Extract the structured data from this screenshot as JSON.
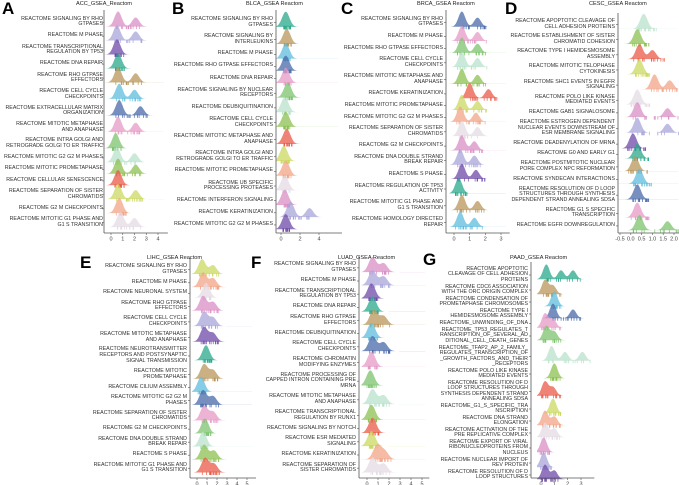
{
  "palette": [
    "#d98fc4",
    "#a9a6db",
    "#6f4aa8",
    "#2aa88a",
    "#b8955a",
    "#5fbcdc",
    "#4a6aa8",
    "#e59ac6",
    "#7cc36e",
    "#b9e2cc",
    "#8cc050",
    "#ea5a48",
    "#cbd860",
    "#f2a487",
    "#e4dbe4"
  ],
  "chart_data": [
    {
      "type": "ridgeline",
      "label": "A",
      "title": "ACC_GSEA_Reactom",
      "xlim": [
        -0.5,
        4.5
      ],
      "ticks": [
        "0",
        "1",
        "2",
        "3",
        "4"
      ],
      "tick_values": [
        0,
        1,
        2,
        3,
        4
      ],
      "rows": [
        {
          "name": "REACTOME SIGNALING BY RHO GTPASES",
          "modes": [
            0.6,
            2.1
          ]
        },
        {
          "name": "REACTOME M PHASE",
          "modes": [
            0.5,
            2.1
          ]
        },
        {
          "name": "REACTOME TRANSCRIPTIONAL REGULATION BY TP53",
          "modes": [
            0.5
          ]
        },
        {
          "name": "REACTOME DNA REPAIR",
          "modes": [
            0.6
          ]
        },
        {
          "name": "REACTOME RHO GTPASE EFFECTORS",
          "modes": [
            0.6,
            2.1
          ]
        },
        {
          "name": "REACTOME CELL CYCLE CHECKPOINTS",
          "modes": [
            0.7,
            2.0
          ]
        },
        {
          "name": "REACTOME EXTRACELLULAR MATRIX ORGANIZATION",
          "modes": [
            0.7,
            2.5
          ]
        },
        {
          "name": "REACTOME MITOTIC METAPHASE AND ANAPHASE",
          "modes": [
            0.6,
            2.1
          ]
        },
        {
          "name": "REACTOME INTRA GOLGI AND RETROGRADE GOLGI TO ER TRAFFIC",
          "modes": [
            0.4
          ]
        },
        {
          "name": "REACTOME MITOTIC G2 G2 M PHASES",
          "modes": [
            0.5,
            2.0
          ]
        },
        {
          "name": "REACTOME MITOTIC PROMETAPHASE",
          "modes": [
            0.6,
            2.1
          ]
        },
        {
          "name": "REACTOME CELLULAR SENESCENCE",
          "modes": [
            0.6
          ]
        },
        {
          "name": "REACTOME SEPARATION OF SISTER CHROMATIDS",
          "modes": [
            0.6,
            2.1
          ]
        },
        {
          "name": "REACTOME G2 M CHECKPOINTS",
          "modes": [
            0.7
          ]
        },
        {
          "name": "REACTOME MITOTIC G1 PHASE AND G1 S TRANSITION",
          "modes": [
            0.8,
            2.0
          ]
        }
      ]
    },
    {
      "type": "ridgeline",
      "label": "B",
      "title": "BLCA_GSEA Reactom",
      "xlim": [
        -0.5,
        6
      ],
      "ticks": [
        "0",
        "2",
        "4"
      ],
      "tick_values": [
        0,
        2,
        4
      ],
      "rows": [
        {
          "name": "REACTOME SIGNALING BY RHO GTPASES",
          "modes": [
            0.5
          ]
        },
        {
          "name": "REACTOME SIGNALING BY INTERLEUKINS",
          "modes": [
            0.6
          ]
        },
        {
          "name": "REACTOME M PHASE",
          "modes": [
            0.5
          ]
        },
        {
          "name": "REACTOME RHO GTPASE EFFECTORS",
          "modes": [
            0.5
          ]
        },
        {
          "name": "REACTOME DNA REPAIR",
          "modes": [
            0.5
          ]
        },
        {
          "name": "REACTOME SIGNALING BY NUCLEAR RECEPTORS",
          "modes": [
            0.7
          ]
        },
        {
          "name": "REACTOME DEUBIQUITINATION",
          "modes": [
            0.4
          ]
        },
        {
          "name": "REACTOME CELL CYCLE CHECKPOINTS",
          "modes": [
            0.5
          ]
        },
        {
          "name": "REACTOME MITOTIC METAPHASE AND ANAPHASE",
          "modes": [
            0.6
          ]
        },
        {
          "name": "REACTOME INTRA GOLGI AND RETROGRADE GOLGI TO ER TRAFFIC",
          "modes": [
            0.3
          ]
        },
        {
          "name": "REACTOME MITOTIC PROMETAPHASE",
          "modes": [
            0.5
          ]
        },
        {
          "name": "REACTOME UB SPECIFIC PROCESSING PROTEASES",
          "modes": [
            0.4
          ]
        },
        {
          "name": "REACTOME INTERFERON SIGNALING",
          "modes": [
            0.4
          ]
        },
        {
          "name": "REACTOME KERATINIZATION",
          "modes": [
            1.0,
            3.0
          ]
        },
        {
          "name": "REACTOME MITOTIC G2 G2 M PHASES",
          "modes": [
            0.5
          ]
        }
      ]
    },
    {
      "type": "ridgeline",
      "label": "C",
      "title": "BRCA_GSEA Reactom",
      "xlim": [
        -0.3,
        3.3
      ],
      "ticks": [
        "0",
        "1",
        "2",
        "3"
      ],
      "tick_values": [
        0,
        1,
        2,
        3
      ],
      "rows": [
        {
          "name": "REACTOME SIGNALING BY RHO GTPASES",
          "modes": [
            0.5,
            1.5
          ]
        },
        {
          "name": "REACTOME M PHASE",
          "modes": [
            0.5,
            1.5
          ]
        },
        {
          "name": "REACTOME RHO GTPASE EFFECTORS",
          "modes": [
            0.5,
            1.5
          ]
        },
        {
          "name": "REACTOME CELL CYCLE CHECKPOINTS",
          "modes": [
            0.5,
            1.5
          ]
        },
        {
          "name": "REACTOME MITOTIC METAPHASE AND ANAPHASE",
          "modes": [
            0.5,
            1.5
          ]
        },
        {
          "name": "REACTOME KERATINIZATION",
          "modes": [
            1.0,
            2.2
          ]
        },
        {
          "name": "REACTOME MITOTIC PROMETAPHASE",
          "modes": [
            0.5,
            1.5
          ]
        },
        {
          "name": "REACTOME MITOTIC G2 G2 M PHASES",
          "modes": [
            0.4,
            1.4
          ]
        },
        {
          "name": "REACTOME SEPARATION OF SISTER CHROMATIDS",
          "modes": [
            0.5,
            1.5
          ]
        },
        {
          "name": "REACTOME G2 M CHECKPOINTS",
          "modes": [
            0.5,
            1.3
          ]
        },
        {
          "name": "REACTOME DNA DOUBLE STRAND BREAK REPAIR",
          "modes": [
            0.4,
            1.3
          ]
        },
        {
          "name": "REACTOME S PHASE",
          "modes": [
            0.5,
            1.4
          ]
        },
        {
          "name": "REACTOME REGULATION OF TP53 ACTIVITY",
          "modes": [
            0.3
          ]
        },
        {
          "name": "REACTOME MITOTIC G1 PHASE AND G1 S TRANSITION",
          "modes": [
            0.5,
            1.5
          ]
        },
        {
          "name": "REACTOME HOMOLOGY DIRECTED REPAIR",
          "modes": [
            0.4,
            1.3
          ]
        }
      ]
    },
    {
      "type": "ridgeline",
      "label": "D",
      "title": "CESC_GSEA Reactom",
      "xlim": [
        -0.6,
        2.2
      ],
      "ticks": [
        "-0.5",
        "0.0",
        "0.5",
        "1.0",
        "1.5",
        "2.0"
      ],
      "tick_values": [
        -0.5,
        0,
        0.5,
        1,
        1.5,
        2
      ],
      "rows": [
        {
          "name": "REACTOME APOPTOTIC CLEAVAGE OF CELL ADHESION PROTEINS",
          "modes": [
            0.6
          ]
        },
        {
          "name": "REACTOME ESTABLISHMENT OF SISTER CHROMATID COHESION",
          "modes": [
            0.3
          ]
        },
        {
          "name": "REACTOME TYPE I HEMIDESMOSOME ASSEMBLY",
          "modes": [
            0.4,
            1.0
          ]
        },
        {
          "name": "REACTOME MITOTIC TELOPHASE CYTOKINESIS",
          "modes": [
            0.4
          ]
        },
        {
          "name": "REACTOME SHC1 EVENTS IN EGFR SIGNALING",
          "modes": [
            1.1,
            1.8
          ]
        },
        {
          "name": "REACTOME POLO LIKE KINASE MEDIATED EVENTS",
          "modes": [
            0.3
          ]
        },
        {
          "name": "REACTOME GAB1 SIGNALOSOME",
          "modes": [
            0.3,
            1.7
          ]
        },
        {
          "name": "REACTOME ESTROGEN DEPENDENT NUCLEAR EVENTS DOWNSTREAM OF ESR MEMBRANE SIGNALING",
          "modes": [
            0.3,
            1.7
          ]
        },
        {
          "name": "REACTOME DEADENYLATION OF MRNA",
          "modes": [
            0.1
          ]
        },
        {
          "name": "REACTOME G0 AND EARLY G1",
          "modes": [
            0.3
          ]
        },
        {
          "name": "REACTOME POSTMITOTIC NUCLEAR PORE COMPLEX NPC REFORMATION",
          "modes": [
            0.2
          ]
        },
        {
          "name": "REACTOME SYNDECAN INTERACTIONS",
          "modes": [
            0.4
          ]
        },
        {
          "name": "REACTOME RESOLUTION OF D LOOP STRUCTURES THROUGH SYNTHESIS DEPENDENT STRAND ANNEALING SDSA",
          "modes": [
            0.3
          ]
        },
        {
          "name": "REACTOME G1 S SPECIFIC TRANSCRIPTION",
          "modes": [
            0.3
          ]
        },
        {
          "name": "REACTOME EGFR DOWNREGULATION",
          "modes": [
            0.4,
            1.7
          ]
        }
      ]
    },
    {
      "type": "ridgeline",
      "label": "E",
      "title": "LIHC_GSEA Reactom",
      "xlim": [
        -0.5,
        5.5
      ],
      "ticks": [
        "0",
        "1",
        "2",
        "3",
        "4",
        "5"
      ],
      "tick_values": [
        0,
        1,
        2,
        3,
        4,
        5
      ],
      "rows": [
        {
          "name": "REACTOME SIGNALING BY RHO GTPASES",
          "modes": [
            0.5,
            1.6
          ]
        },
        {
          "name": "REACTOME M PHASE",
          "modes": [
            0.6,
            1.6
          ]
        },
        {
          "name": "REACTOME NEURONAL SYSTEM",
          "modes": [
            0.9
          ]
        },
        {
          "name": "REACTOME RHO GTPASE EFFECTORS",
          "modes": [
            0.6,
            1.6
          ]
        },
        {
          "name": "REACTOME CELL CYCLE CHECKPOINTS",
          "modes": [
            0.7,
            1.6
          ]
        },
        {
          "name": "REACTOME MITOTIC METAPHASE AND ANAPHASE",
          "modes": [
            0.7,
            1.6
          ]
        },
        {
          "name": "REACTOME NEUROTRANSMITTER RECEPTORS AND POSTSYNAPTIC SIGNAL TRANSMISSION",
          "modes": [
            0.9
          ]
        },
        {
          "name": "REACTOME MITOTIC PROMETAPHASE",
          "modes": [
            0.7,
            1.6
          ]
        },
        {
          "name": "REACTOME CILIUM ASSEMBLY",
          "modes": [
            0.4
          ]
        },
        {
          "name": "REACTOME MITOTIC G2 G2 M PHASES",
          "modes": [
            0.6,
            1.6
          ]
        },
        {
          "name": "REACTOME SEPARATION OF SISTER CHROMATIDS",
          "modes": [
            0.7,
            1.6
          ]
        },
        {
          "name": "REACTOME G2 M CHECKPOINTS",
          "modes": [
            0.8
          ]
        },
        {
          "name": "REACTOME DNA DOUBLE STRAND BREAK REPAIR",
          "modes": [
            0.6
          ]
        },
        {
          "name": "REACTOME S PHASE",
          "modes": [
            0.7,
            1.7
          ]
        },
        {
          "name": "REACTOME MITOTIC G1 PHASE AND G1 S TRANSITION",
          "modes": [
            0.8,
            1.7
          ]
        }
      ]
    },
    {
      "type": "ridgeline",
      "label": "F",
      "title": "LUAD_GSEA Reactom",
      "xlim": [
        -0.5,
        5.3
      ],
      "ticks": [
        "0",
        "1",
        "2",
        "3",
        "4",
        "5"
      ],
      "tick_values": [
        0,
        1,
        2,
        3,
        4,
        5
      ],
      "rows": [
        {
          "name": "REACTOME SIGNALING BY RHO GTPASES",
          "modes": [
            0.5,
            1.5
          ]
        },
        {
          "name": "REACTOME M PHASE",
          "modes": [
            0.5,
            1.5
          ]
        },
        {
          "name": "REACTOME TRANSCRIPTIONAL REGULATION BY TP53",
          "modes": [
            0.4
          ]
        },
        {
          "name": "REACTOME DNA REPAIR",
          "modes": [
            0.5
          ]
        },
        {
          "name": "REACTOME RHO GTPASE EFFECTORS",
          "modes": [
            0.6,
            1.5
          ]
        },
        {
          "name": "REACTOME DEUBIQUITINATION",
          "modes": [
            0.4
          ]
        },
        {
          "name": "REACTOME CELL CYCLE CHECKPOINTS",
          "modes": [
            0.5,
            1.5
          ]
        },
        {
          "name": "REACTOME CHROMATIN MODIFYING ENZYMES",
          "modes": [
            0.4
          ]
        },
        {
          "name": "REACTOME PROCESSING OF CAPPED INTRON CONTAINING PRE MRNA",
          "modes": [
            0.3
          ]
        },
        {
          "name": "REACTOME MITOTIC METAPHASE AND ANAPHASE",
          "modes": [
            0.5,
            1.5
          ]
        },
        {
          "name": "REACTOME TRANSCRIPTIONAL REGULATION BY RUNX1",
          "modes": [
            0.4
          ]
        },
        {
          "name": "REACTOME SIGNALING BY NOTCH",
          "modes": [
            0.5
          ]
        },
        {
          "name": "REACTOME ESR MEDIATED SIGNALING",
          "modes": [
            0.4
          ]
        },
        {
          "name": "REACTOME KERATINIZATION",
          "modes": [
            0.9,
            1.6
          ]
        },
        {
          "name": "REACTOME SEPARATION OF SISTER CHROMATIDS",
          "modes": [
            0.5,
            1.5
          ]
        }
      ]
    },
    {
      "type": "ridgeline",
      "label": "G",
      "title": "PAAD_GSEA Reactom",
      "xlim": [
        -0.3,
        3.7
      ],
      "ticks": [
        "0",
        "1",
        "2",
        "3"
      ],
      "tick_values": [
        0,
        1,
        2,
        3
      ],
      "rows": [
        {
          "name": "REACTOME APOPTOTIC CLEAVAGE OF CELL ADHESION PROTEINS",
          "modes": [
            0.4,
            1.5,
            2.4
          ]
        },
        {
          "name": "REACTOME CDC6 ASSOCIATION WITH THE ORC ORIGIN COMPLEX",
          "modes": [
            0.3,
            0.9
          ]
        },
        {
          "name": "REACTOME CONDENSATION OF PROMETAPHASE CHROMOSOMES",
          "modes": [
            1.0
          ]
        },
        {
          "name": "REACTOME TYPE I HEMIDESMOSOME ASSEMBLY",
          "modes": [
            0.9,
            2.4
          ]
        },
        {
          "name": "REACTOME_UNWINDING_OF_DNA",
          "modes": [
            0.3,
            0.9
          ]
        },
        {
          "name": "REACTOME_TP53_REGULATES_TRANSCRIPTION_OF_SEVERAL_ADDITIONAL_CELL_DEATH_GENES",
          "modes": [
            0.4,
            1.0
          ]
        },
        {
          "name": "REACTOME_TFAP2_AP_2_FAMILY_REGULATES_TRANSCRIPTION_OF_GROWTH_FACTORS_AND_THEIR_RECEPTORS",
          "modes": [
            0.8,
            1.8,
            3.1
          ]
        },
        {
          "name": "REACTOME POLO LIKE KINASE MEDIATED EVENTS",
          "modes": [
            1.0
          ]
        },
        {
          "name": "REACTOME RESOLUTION OF D LOOP STRUCTURES THROUGH SYNTHESIS DEPENDENT STRAND ANNEALING SDSA",
          "modes": [
            0.3,
            0.9
          ]
        },
        {
          "name": "REACTOME_G1_S_SPECIFIC_TRANSCRIPTION",
          "modes": [
            0.9
          ]
        },
        {
          "name": "REACTOME DNA STRAND ELONGATION",
          "modes": [
            0.3,
            1.0
          ]
        },
        {
          "name": "REACTOME ACTIVATION OF THE PRE REPLICATIVE COMPLEX",
          "modes": [
            0.3,
            1.0
          ]
        },
        {
          "name": "REACTOME EXPORT OF VIRAL RIBONUCLEOPROTEINS FROM NUCLEUS",
          "modes": [
            0.2
          ]
        },
        {
          "name": "REACTOME NUCLEAR IMPORT OF REV PROTEIN",
          "modes": [
            0.2
          ]
        },
        {
          "name": "REACTOME RESOLUTION OF D LOOP STRUCTURES",
          "modes": [
            0.3,
            1.0
          ]
        }
      ]
    }
  ]
}
